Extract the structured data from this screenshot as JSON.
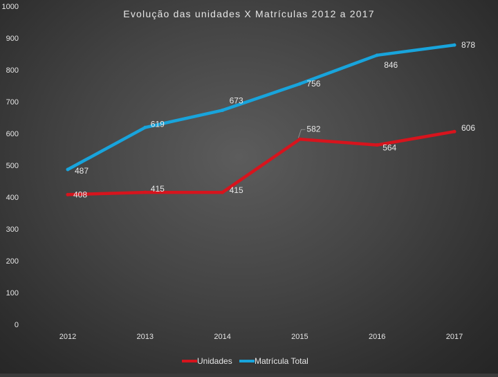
{
  "chart_data": {
    "type": "line",
    "title": "Evolução das unidades X Matrículas 2012 a 2017",
    "xlabel": "",
    "ylabel": "",
    "categories": [
      "2012",
      "2013",
      "2014",
      "2015",
      "2016",
      "2017"
    ],
    "ylim": [
      0,
      1000
    ],
    "yticks": [
      "0",
      "100",
      "200",
      "300",
      "400",
      "500",
      "600",
      "700",
      "800",
      "900",
      "1000"
    ],
    "grid": false,
    "legend": "bottom",
    "series": [
      {
        "name": "Unidades",
        "color": "#d7141d",
        "values": [
          408,
          415,
          415,
          582,
          564,
          606
        ],
        "labels": [
          "408",
          "415",
          "415",
          "582",
          "564",
          "606"
        ]
      },
      {
        "name": "Matrícula Total",
        "color": "#18a4dc",
        "values": [
          487,
          619,
          673,
          756,
          846,
          878
        ],
        "labels": [
          "487",
          "619",
          "673",
          "756",
          "846",
          "878"
        ]
      }
    ]
  }
}
